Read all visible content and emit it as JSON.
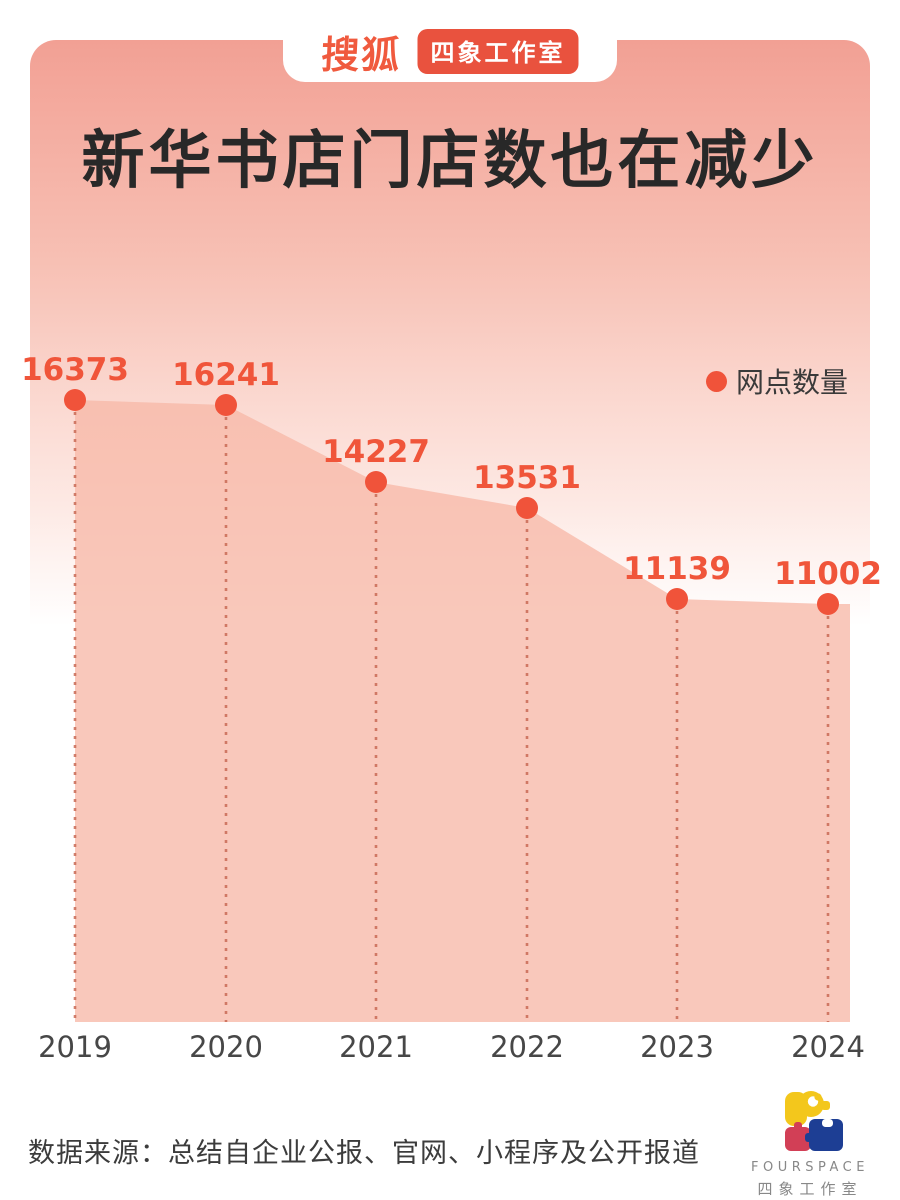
{
  "header": {
    "sohu_logo": "搜狐",
    "studio_badge": "四象工作室"
  },
  "title": "新华书店门店数也在减少",
  "legend": {
    "label": "网点数量"
  },
  "chart_data": {
    "type": "area",
    "x": [
      "2019",
      "2020",
      "2021",
      "2022",
      "2023",
      "2024"
    ],
    "series": [
      {
        "name": "网点数量",
        "values": [
          16373,
          16241,
          14227,
          13531,
          11139,
          11002
        ]
      }
    ],
    "title": "新华书店门店数也在减少",
    "ylim": [
      0,
      17000
    ],
    "grid": false,
    "legend_position": "top-right",
    "point_labels": true,
    "colors": {
      "accent": "#f0553a",
      "area_fill": "#f7b8a8",
      "dashed_guide": "#c96a55",
      "card_pink": "#f2a094",
      "badge_red": "#e9523e",
      "title_text": "#282828",
      "axis_text": "#474747"
    }
  },
  "footer": {
    "source": "数据来源：总结自企业公报、官网、小程序及公开报道",
    "logo_name": "FOURSPACE",
    "logo_subtext": "四象工作室",
    "logo_colors": {
      "yellow": "#f3c71c",
      "red": "#d23f56",
      "blue": "#1d3e94"
    }
  }
}
